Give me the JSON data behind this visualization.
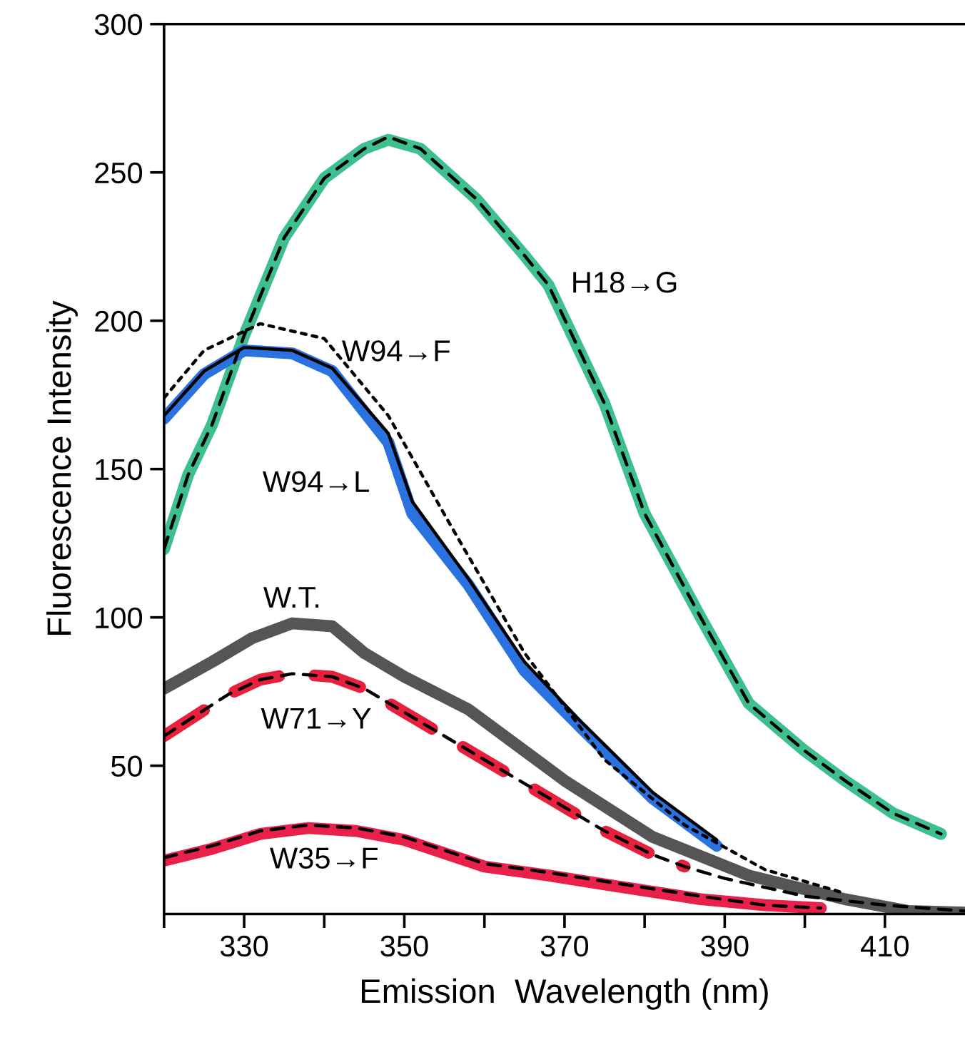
{
  "chart_data": {
    "type": "line",
    "xlabel": "Emission  Wavelength (nm)",
    "ylabel": "Fluorescence Intensity",
    "xlim": [
      320,
      420
    ],
    "ylim": [
      0,
      300
    ],
    "xticks": [
      {
        "value": 320,
        "label": null
      },
      330,
      {
        "value": 340,
        "label": null
      },
      350,
      {
        "value": 360,
        "label": null
      },
      370,
      {
        "value": 380,
        "label": null
      },
      390,
      {
        "value": 400,
        "label": null
      },
      410
    ],
    "yticks": [
      50,
      100,
      150,
      200,
      250,
      300
    ],
    "grid": false,
    "legend": false,
    "series": [
      {
        "name": "H18→G",
        "color": "#3dbf8f",
        "line_style": "solid",
        "x": [
          320,
          323,
          326,
          330,
          335,
          340,
          345,
          348,
          352,
          359,
          365,
          368,
          375,
          380,
          387,
          393,
          400,
          405,
          411,
          417
        ],
        "values": [
          123,
          148,
          165,
          195,
          228,
          248,
          258,
          261,
          258,
          241,
          222,
          212,
          172,
          135,
          100,
          71,
          55,
          45,
          34,
          27
        ]
      },
      {
        "color": "#000000",
        "line_style": "dashed",
        "x": [
          320,
          323,
          326,
          330,
          335,
          340,
          345,
          348,
          352,
          359,
          365,
          368,
          375,
          380,
          387,
          393,
          400,
          405,
          411,
          417
        ],
        "values": [
          123,
          148,
          165,
          195,
          228,
          248,
          258,
          262,
          258,
          241,
          222,
          212,
          172,
          135,
          100,
          71,
          55,
          45,
          34,
          27
        ]
      },
      {
        "name": "W94→L",
        "color": "#2a72e0",
        "line_style": "solid",
        "x": [
          320,
          325,
          330,
          336,
          341,
          348,
          351,
          358,
          365,
          372,
          381,
          389
        ],
        "values": [
          167,
          182,
          190,
          189,
          183,
          159,
          135,
          111,
          82,
          63,
          39,
          23
        ]
      },
      {
        "color": "#000000",
        "line_style": "solid",
        "x": [
          320,
          325,
          330,
          336,
          341,
          348,
          351,
          358,
          365,
          372,
          381,
          389
        ],
        "values": [
          168,
          183,
          191,
          190,
          184,
          162,
          139,
          113,
          85,
          65,
          41,
          25
        ]
      },
      {
        "name": "W94→F",
        "color": "#000000",
        "line_style": "dotted",
        "x": [
          320,
          325,
          332,
          340,
          348,
          356,
          365,
          375,
          385,
          395,
          405
        ],
        "values": [
          174,
          190,
          199,
          194,
          168,
          130,
          88,
          52,
          30,
          15,
          7
        ]
      },
      {
        "name": "W.T.",
        "color": "#555555",
        "line_style": "solid",
        "x": [
          320,
          326,
          331,
          336,
          341,
          345,
          350,
          358,
          364,
          370,
          381,
          393,
          405,
          413,
          420
        ],
        "values": [
          76,
          85,
          93,
          98,
          97,
          88,
          80,
          69,
          57,
          45,
          26,
          13,
          5,
          1,
          0.5
        ]
      },
      {
        "name": "W71→Y",
        "color": "#e8203c",
        "line_style": "dashed",
        "x": [
          320,
          324,
          328,
          332,
          336,
          341,
          345,
          350,
          355,
          360,
          365,
          370,
          375,
          381,
          385
        ],
        "values": [
          60,
          67,
          74,
          79,
          81,
          80,
          76,
          68,
          60,
          52,
          44,
          36,
          28,
          20,
          16
        ]
      },
      {
        "color": "#000000",
        "line_style": "dashed",
        "x": [
          320,
          324,
          328,
          332,
          336,
          341,
          345,
          350,
          355,
          360,
          365,
          370,
          375,
          381,
          385,
          390,
          400,
          410,
          420
        ],
        "values": [
          60,
          67,
          74,
          79,
          81,
          80,
          76,
          68,
          60,
          52,
          44,
          36,
          28,
          20,
          16,
          12,
          6,
          3,
          1
        ]
      },
      {
        "name": "W35→F",
        "color": "#e8204a",
        "line_style": "solid",
        "x": [
          320,
          326,
          332,
          338,
          344,
          350,
          360,
          368,
          375,
          387,
          395,
          402
        ],
        "values": [
          18,
          22,
          27,
          29,
          28,
          25,
          16,
          13,
          10,
          5,
          3,
          2
        ]
      },
      {
        "color": "#000000",
        "line_style": "dashed",
        "x": [
          320,
          326,
          332,
          338,
          344,
          350,
          360,
          368,
          375,
          387,
          395,
          402
        ],
        "values": [
          19,
          23,
          28,
          30,
          29,
          26,
          17,
          14,
          11,
          6,
          3,
          2
        ]
      }
    ]
  }
}
